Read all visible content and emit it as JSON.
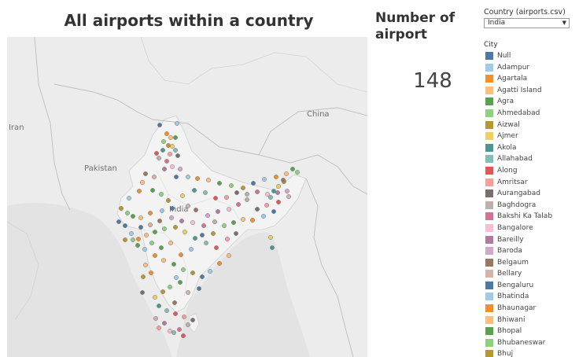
{
  "map": {
    "title": "All airports within a country",
    "labels": {
      "iran": "Iran",
      "pakistan": "Pakistan",
      "india": "India",
      "china": "China"
    }
  },
  "kpi": {
    "title": "Number of airport",
    "value": "148"
  },
  "filter": {
    "label": "Country (airports.csv)",
    "selected": "India"
  },
  "legend": {
    "title": "City",
    "items": [
      {
        "label": "Null",
        "color": "#4e79a7"
      },
      {
        "label": "Adampur",
        "color": "#a0cbe8"
      },
      {
        "label": "Agartala",
        "color": "#f28e2b"
      },
      {
        "label": "Agatti Island",
        "color": "#ffbe7d"
      },
      {
        "label": "Agra",
        "color": "#59a14f"
      },
      {
        "label": "Ahmedabad",
        "color": "#8cd17d"
      },
      {
        "label": "Aizwal",
        "color": "#b6992d"
      },
      {
        "label": "Ajmer",
        "color": "#f1ce63"
      },
      {
        "label": "Akola",
        "color": "#499894"
      },
      {
        "label": "Allahabad",
        "color": "#86bcb6"
      },
      {
        "label": "Along",
        "color": "#e15759"
      },
      {
        "label": "Amritsar",
        "color": "#ff9d9a"
      },
      {
        "label": "Aurangabad",
        "color": "#79706e"
      },
      {
        "label": "Baghdogra",
        "color": "#bab0ac"
      },
      {
        "label": "Bakshi Ka Talab",
        "color": "#d37295"
      },
      {
        "label": "Bangalore",
        "color": "#fabfd2"
      },
      {
        "label": "Bareilly",
        "color": "#b07aa1"
      },
      {
        "label": "Baroda",
        "color": "#d4a6c8"
      },
      {
        "label": "Belgaum",
        "color": "#9d7660"
      },
      {
        "label": "Bellary",
        "color": "#d7b5a6"
      },
      {
        "label": "Bengaluru",
        "color": "#4e79a7"
      },
      {
        "label": "Bhatinda",
        "color": "#a0cbe8"
      },
      {
        "label": "Bhaunagar",
        "color": "#f28e2b"
      },
      {
        "label": "Bhiwani",
        "color": "#ffbe7d"
      },
      {
        "label": "Bhopal",
        "color": "#59a14f"
      },
      {
        "label": "Bhubaneswar",
        "color": "#8cd17d"
      },
      {
        "label": "Bhuj",
        "color": "#b6992d"
      }
    ]
  }
}
